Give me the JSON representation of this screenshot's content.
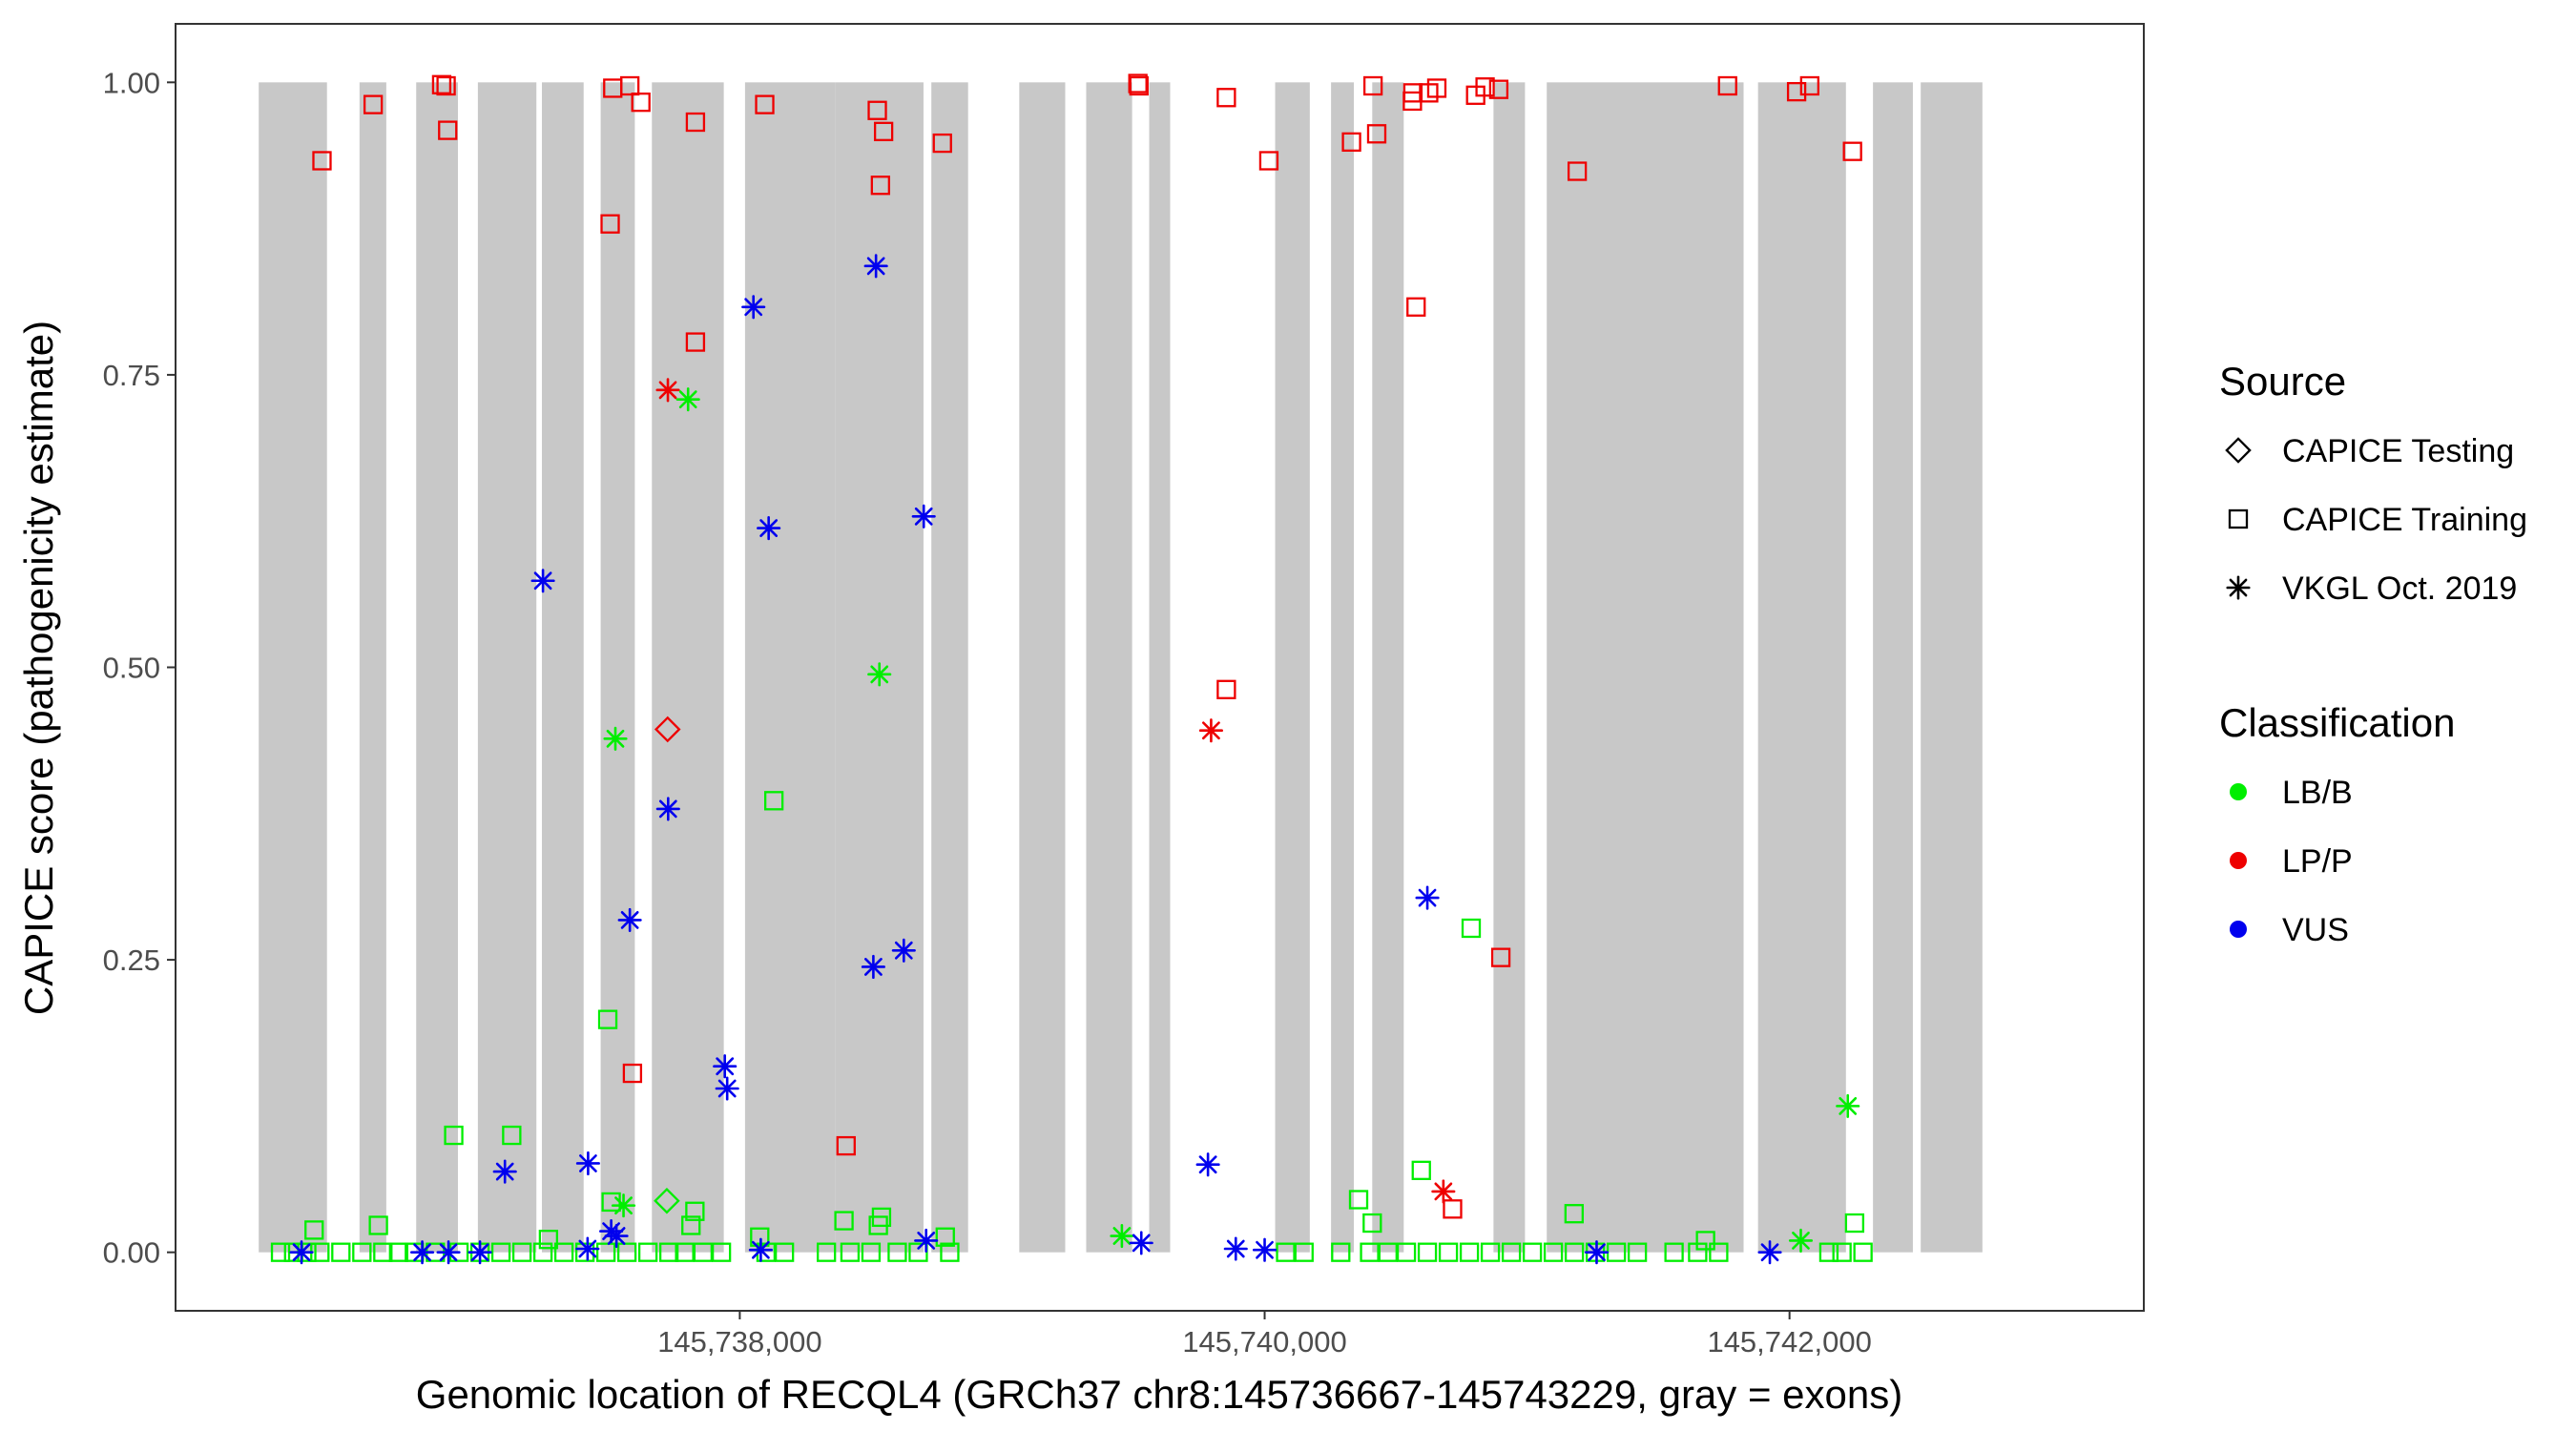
{
  "chart_data": {
    "type": "scatter",
    "xlabel": "Genomic location of RECQL4 (GRCh37 chr8:145736667-145743229, gray = exons)",
    "ylabel": "CAPICE score (pathogenicity estimate)",
    "xlim": [
      145735850,
      145743350
    ],
    "ylim": [
      -0.05,
      1.05
    ],
    "x_ticks": [
      145738000,
      145740000,
      145742000
    ],
    "x_tick_labels": [
      "145,738,000",
      "145,740,000",
      "145,742,000"
    ],
    "y_ticks": [
      0,
      0.25,
      0.5,
      0.75,
      1.0
    ],
    "y_tick_labels": [
      "0.00",
      "0.25",
      "0.50",
      "0.75",
      "1.00"
    ],
    "grid": false,
    "exon_color": "#c8c8c8",
    "exons": [
      [
        145736167,
        145736427
      ],
      [
        145736551,
        145736653
      ],
      [
        145736767,
        145736926
      ],
      [
        145737002,
        145737225
      ],
      [
        145737246,
        145737405
      ],
      [
        145737470,
        145737600
      ],
      [
        145737665,
        145737939
      ],
      [
        145738020,
        145738365
      ],
      [
        145738365,
        145738700
      ],
      [
        145738730,
        145738870
      ],
      [
        145739065,
        145739240
      ],
      [
        145739320,
        145739495
      ],
      [
        145739560,
        145739640
      ],
      [
        145740040,
        145740172
      ],
      [
        145740253,
        145740340
      ],
      [
        145740410,
        145740530
      ],
      [
        145740872,
        145740992
      ],
      [
        145741075,
        145741825
      ],
      [
        145741880,
        145742215
      ],
      [
        145742318,
        145742470
      ],
      [
        145742500,
        145742735
      ]
    ],
    "legend": [
      {
        "title": "Source",
        "entries": [
          {
            "label": "CAPICE Testing",
            "shape": "diamond"
          },
          {
            "label": "CAPICE Training",
            "shape": "square"
          },
          {
            "label": "VKGL Oct. 2019",
            "shape": "asterisk"
          }
        ]
      },
      {
        "title": "Classification",
        "entries": [
          {
            "label": "LB/B",
            "color": "#00ee00"
          },
          {
            "label": "LP/P",
            "color": "#ee0000"
          },
          {
            "label": "VUS",
            "color": "#0000ee"
          }
        ]
      }
    ],
    "legend_position": "right",
    "class_colors": {
      "LB/B": "#00ee00",
      "LP/P": "#ee0000",
      "VUS": "#0000ee"
    },
    "series": [
      {
        "source": "CAPICE Training",
        "class": "LP/P",
        "shape": "square",
        "points": [
          [
            145736408,
            0.933
          ],
          [
            145736603,
            0.981
          ],
          [
            145736864,
            0.998
          ],
          [
            145736881,
            0.997
          ],
          [
            145736887,
            0.959
          ],
          [
            145737516,
            0.995
          ],
          [
            145737581,
            0.997
          ],
          [
            145737623,
            0.983
          ],
          [
            145737506,
            0.879
          ],
          [
            145737591,
            0.153
          ],
          [
            145737831,
            0.966
          ],
          [
            145737831,
            0.778
          ],
          [
            145738095,
            0.981
          ],
          [
            145738524,
            0.976
          ],
          [
            145738536,
            0.912
          ],
          [
            145738548,
            0.958
          ],
          [
            145738772,
            0.948
          ],
          [
            145738405,
            0.091
          ],
          [
            145739517,
            0.999
          ],
          [
            145739521,
            0.997
          ],
          [
            145739854,
            0.987
          ],
          [
            145739854,
            0.481
          ],
          [
            145740016,
            0.933
          ],
          [
            145740331,
            0.949
          ],
          [
            145740413,
            0.997
          ],
          [
            145740427,
            0.956
          ],
          [
            145740563,
            0.984
          ],
          [
            145740565,
            0.991
          ],
          [
            145740625,
            0.991
          ],
          [
            145740656,
            0.995
          ],
          [
            145740804,
            0.989
          ],
          [
            145740840,
            0.996
          ],
          [
            145740892,
            0.994
          ],
          [
            145741191,
            0.924
          ],
          [
            145740577,
            0.808
          ],
          [
            145740900,
            0.252
          ],
          [
            145740716,
            0.037
          ],
          [
            145741764,
            0.997
          ],
          [
            145742027,
            0.992
          ],
          [
            145742077,
            0.997
          ],
          [
            145742240,
            0.941
          ]
        ]
      },
      {
        "source": "CAPICE Training",
        "class": "LB/B",
        "shape": "square",
        "points": [
          [
            145736378,
            0.019
          ],
          [
            145736623,
            0.023
          ],
          [
            145736910,
            0.1
          ],
          [
            145737131,
            0.1
          ],
          [
            145737271,
            0.011
          ],
          [
            145737497,
            0.199
          ],
          [
            145737510,
            0.043
          ],
          [
            145737814,
            0.023
          ],
          [
            145737829,
            0.035
          ],
          [
            145738130,
            0.386
          ],
          [
            145738076,
            0.013
          ],
          [
            145738397,
            0.027
          ],
          [
            145738528,
            0.023
          ],
          [
            145738540,
            0.03
          ],
          [
            145738783,
            0.013
          ],
          [
            145740410,
            0.025
          ],
          [
            145740358,
            0.045
          ],
          [
            145740597,
            0.07
          ],
          [
            145740787,
            0.277
          ],
          [
            145741179,
            0.033
          ],
          [
            145741680,
            0.01
          ],
          [
            145742248,
            0.025
          ],
          [
            145736250,
            0.0
          ],
          [
            145736300,
            0.0
          ],
          [
            145736350,
            0.0
          ],
          [
            145736400,
            0.0
          ],
          [
            145736480,
            0.0
          ],
          [
            145736560,
            0.0
          ],
          [
            145736640,
            0.0
          ],
          [
            145736700,
            0.0
          ],
          [
            145736760,
            0.0
          ],
          [
            145736840,
            0.0
          ],
          [
            145736930,
            0.0
          ],
          [
            145737010,
            0.0
          ],
          [
            145737090,
            0.0
          ],
          [
            145737170,
            0.0
          ],
          [
            145737250,
            0.0
          ],
          [
            145737330,
            0.0
          ],
          [
            145737410,
            0.0
          ],
          [
            145737490,
            0.0
          ],
          [
            145737570,
            0.0
          ],
          [
            145737650,
            0.0
          ],
          [
            145737730,
            0.0
          ],
          [
            145737790,
            0.0
          ],
          [
            145737860,
            0.0
          ],
          [
            145737930,
            0.0
          ],
          [
            145738100,
            0.0
          ],
          [
            145738170,
            0.0
          ],
          [
            145738330,
            0.0
          ],
          [
            145738420,
            0.0
          ],
          [
            145738500,
            0.0
          ],
          [
            145738600,
            0.0
          ],
          [
            145738680,
            0.0
          ],
          [
            145738800,
            0.0
          ],
          [
            145740080,
            0.0
          ],
          [
            145740150,
            0.0
          ],
          [
            145740290,
            0.0
          ],
          [
            145740400,
            0.0
          ],
          [
            145740470,
            0.0
          ],
          [
            145740540,
            0.0
          ],
          [
            145740620,
            0.0
          ],
          [
            145740700,
            0.0
          ],
          [
            145740780,
            0.0
          ],
          [
            145740860,
            0.0
          ],
          [
            145740940,
            0.0
          ],
          [
            145741020,
            0.0
          ],
          [
            145741100,
            0.0
          ],
          [
            145741180,
            0.0
          ],
          [
            145741260,
            0.0
          ],
          [
            145741340,
            0.0
          ],
          [
            145741420,
            0.0
          ],
          [
            145741560,
            0.0
          ],
          [
            145741650,
            0.0
          ],
          [
            145741730,
            0.0
          ],
          [
            145742150,
            0.0
          ],
          [
            145742200,
            0.0
          ],
          [
            145742280,
            0.0
          ]
        ]
      },
      {
        "source": "CAPICE Testing",
        "class": "LP/P",
        "shape": "diamond",
        "points": [
          [
            145737725,
            0.447
          ]
        ]
      },
      {
        "source": "CAPICE Testing",
        "class": "LB/B",
        "shape": "diamond",
        "points": [
          [
            145737722,
            0.044
          ]
        ]
      },
      {
        "source": "VKGL Oct. 2019",
        "class": "LP/P",
        "shape": "asterisk",
        "points": [
          [
            145737726,
            0.737
          ],
          [
            145739796,
            0.446
          ],
          [
            145740681,
            0.052
          ]
        ]
      },
      {
        "source": "VKGL Oct. 2019",
        "class": "LB/B",
        "shape": "asterisk",
        "points": [
          [
            145737526,
            0.439
          ],
          [
            145737803,
            0.729
          ],
          [
            145738532,
            0.494
          ],
          [
            145737557,
            0.04
          ],
          [
            145742222,
            0.125
          ],
          [
            145739456,
            0.014
          ],
          [
            145742043,
            0.01
          ]
        ]
      },
      {
        "source": "VKGL Oct. 2019",
        "class": "VUS",
        "shape": "asterisk",
        "points": [
          [
            145736330,
            0.0
          ],
          [
            145737105,
            0.069
          ],
          [
            145737250,
            0.574
          ],
          [
            145737422,
            0.076
          ],
          [
            145737581,
            0.284
          ],
          [
            145737727,
            0.379
          ],
          [
            145737943,
            0.159
          ],
          [
            145737952,
            0.14
          ],
          [
            145738052,
            0.808
          ],
          [
            145738110,
            0.619
          ],
          [
            145738519,
            0.843
          ],
          [
            145738509,
            0.244
          ],
          [
            145738625,
            0.258
          ],
          [
            145738701,
            0.629
          ],
          [
            145739784,
            0.075
          ],
          [
            145740620,
            0.303
          ],
          [
            145736790,
            0.0
          ],
          [
            145736890,
            0.0
          ],
          [
            145737010,
            0.0
          ],
          [
            145737420,
            0.003
          ],
          [
            145737510,
            0.018
          ],
          [
            145737530,
            0.014
          ],
          [
            145738080,
            0.002
          ],
          [
            145738710,
            0.01
          ],
          [
            145739530,
            0.008
          ],
          [
            145739890,
            0.003
          ],
          [
            145740000,
            0.002
          ],
          [
            145741265,
            0.0
          ],
          [
            145741925,
            0.0
          ]
        ]
      }
    ]
  }
}
